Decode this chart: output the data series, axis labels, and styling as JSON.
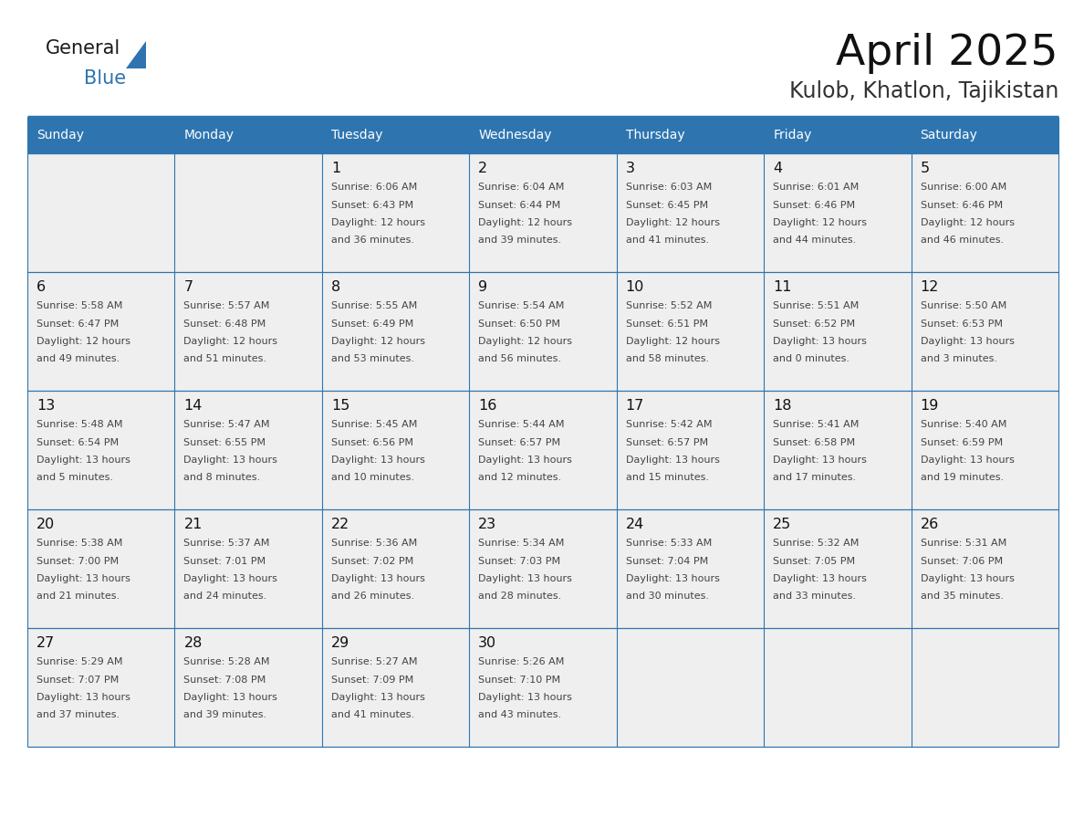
{
  "title": "April 2025",
  "subtitle": "Kulob, Khatlon, Tajikistan",
  "days_of_week": [
    "Sunday",
    "Monday",
    "Tuesday",
    "Wednesday",
    "Thursday",
    "Friday",
    "Saturday"
  ],
  "header_bg": "#2E75B0",
  "header_text": "#FFFFFF",
  "cell_bg": "#EFEFEF",
  "border_color": "#2E75B0",
  "text_color": "#444444",
  "day_number_color": "#111111",
  "title_color": "#111111",
  "subtitle_color": "#333333",
  "calendar_data": [
    [
      {
        "day": null,
        "sunrise": null,
        "sunset": null,
        "daylight": null
      },
      {
        "day": null,
        "sunrise": null,
        "sunset": null,
        "daylight": null
      },
      {
        "day": 1,
        "sunrise": "6:06 AM",
        "sunset": "6:43 PM",
        "daylight": "12 hours\nand 36 minutes."
      },
      {
        "day": 2,
        "sunrise": "6:04 AM",
        "sunset": "6:44 PM",
        "daylight": "12 hours\nand 39 minutes."
      },
      {
        "day": 3,
        "sunrise": "6:03 AM",
        "sunset": "6:45 PM",
        "daylight": "12 hours\nand 41 minutes."
      },
      {
        "day": 4,
        "sunrise": "6:01 AM",
        "sunset": "6:46 PM",
        "daylight": "12 hours\nand 44 minutes."
      },
      {
        "day": 5,
        "sunrise": "6:00 AM",
        "sunset": "6:46 PM",
        "daylight": "12 hours\nand 46 minutes."
      }
    ],
    [
      {
        "day": 6,
        "sunrise": "5:58 AM",
        "sunset": "6:47 PM",
        "daylight": "12 hours\nand 49 minutes."
      },
      {
        "day": 7,
        "sunrise": "5:57 AM",
        "sunset": "6:48 PM",
        "daylight": "12 hours\nand 51 minutes."
      },
      {
        "day": 8,
        "sunrise": "5:55 AM",
        "sunset": "6:49 PM",
        "daylight": "12 hours\nand 53 minutes."
      },
      {
        "day": 9,
        "sunrise": "5:54 AM",
        "sunset": "6:50 PM",
        "daylight": "12 hours\nand 56 minutes."
      },
      {
        "day": 10,
        "sunrise": "5:52 AM",
        "sunset": "6:51 PM",
        "daylight": "12 hours\nand 58 minutes."
      },
      {
        "day": 11,
        "sunrise": "5:51 AM",
        "sunset": "6:52 PM",
        "daylight": "13 hours\nand 0 minutes."
      },
      {
        "day": 12,
        "sunrise": "5:50 AM",
        "sunset": "6:53 PM",
        "daylight": "13 hours\nand 3 minutes."
      }
    ],
    [
      {
        "day": 13,
        "sunrise": "5:48 AM",
        "sunset": "6:54 PM",
        "daylight": "13 hours\nand 5 minutes."
      },
      {
        "day": 14,
        "sunrise": "5:47 AM",
        "sunset": "6:55 PM",
        "daylight": "13 hours\nand 8 minutes."
      },
      {
        "day": 15,
        "sunrise": "5:45 AM",
        "sunset": "6:56 PM",
        "daylight": "13 hours\nand 10 minutes."
      },
      {
        "day": 16,
        "sunrise": "5:44 AM",
        "sunset": "6:57 PM",
        "daylight": "13 hours\nand 12 minutes."
      },
      {
        "day": 17,
        "sunrise": "5:42 AM",
        "sunset": "6:57 PM",
        "daylight": "13 hours\nand 15 minutes."
      },
      {
        "day": 18,
        "sunrise": "5:41 AM",
        "sunset": "6:58 PM",
        "daylight": "13 hours\nand 17 minutes."
      },
      {
        "day": 19,
        "sunrise": "5:40 AM",
        "sunset": "6:59 PM",
        "daylight": "13 hours\nand 19 minutes."
      }
    ],
    [
      {
        "day": 20,
        "sunrise": "5:38 AM",
        "sunset": "7:00 PM",
        "daylight": "13 hours\nand 21 minutes."
      },
      {
        "day": 21,
        "sunrise": "5:37 AM",
        "sunset": "7:01 PM",
        "daylight": "13 hours\nand 24 minutes."
      },
      {
        "day": 22,
        "sunrise": "5:36 AM",
        "sunset": "7:02 PM",
        "daylight": "13 hours\nand 26 minutes."
      },
      {
        "day": 23,
        "sunrise": "5:34 AM",
        "sunset": "7:03 PM",
        "daylight": "13 hours\nand 28 minutes."
      },
      {
        "day": 24,
        "sunrise": "5:33 AM",
        "sunset": "7:04 PM",
        "daylight": "13 hours\nand 30 minutes."
      },
      {
        "day": 25,
        "sunrise": "5:32 AM",
        "sunset": "7:05 PM",
        "daylight": "13 hours\nand 33 minutes."
      },
      {
        "day": 26,
        "sunrise": "5:31 AM",
        "sunset": "7:06 PM",
        "daylight": "13 hours\nand 35 minutes."
      }
    ],
    [
      {
        "day": 27,
        "sunrise": "5:29 AM",
        "sunset": "7:07 PM",
        "daylight": "13 hours\nand 37 minutes."
      },
      {
        "day": 28,
        "sunrise": "5:28 AM",
        "sunset": "7:08 PM",
        "daylight": "13 hours\nand 39 minutes."
      },
      {
        "day": 29,
        "sunrise": "5:27 AM",
        "sunset": "7:09 PM",
        "daylight": "13 hours\nand 41 minutes."
      },
      {
        "day": 30,
        "sunrise": "5:26 AM",
        "sunset": "7:10 PM",
        "daylight": "13 hours\nand 43 minutes."
      },
      {
        "day": null,
        "sunrise": null,
        "sunset": null,
        "daylight": null
      },
      {
        "day": null,
        "sunrise": null,
        "sunset": null,
        "daylight": null
      },
      {
        "day": null,
        "sunrise": null,
        "sunset": null,
        "daylight": null
      }
    ]
  ]
}
